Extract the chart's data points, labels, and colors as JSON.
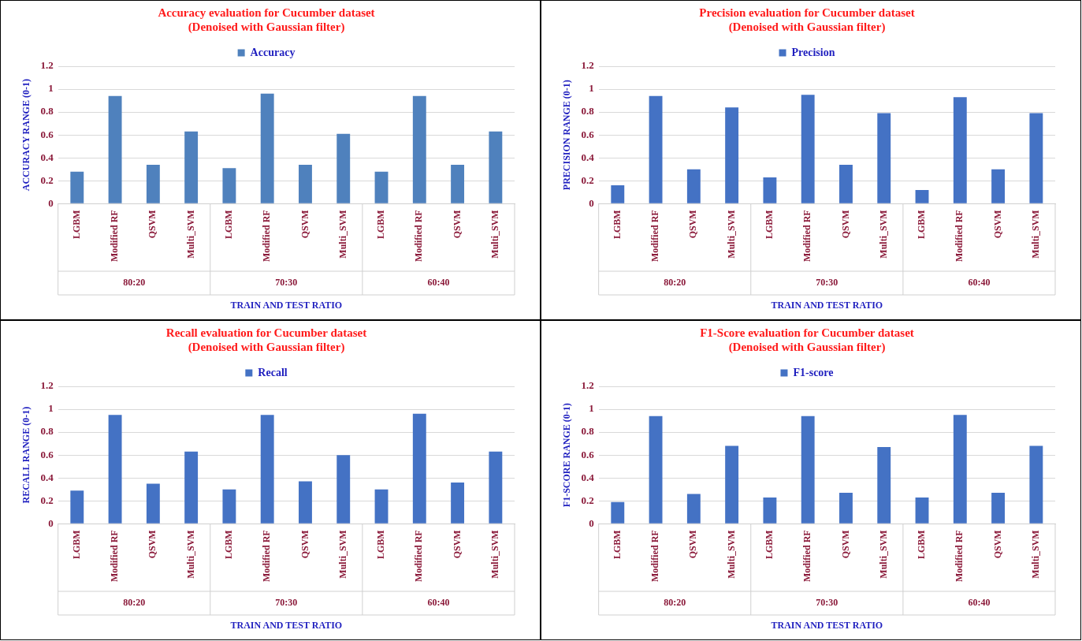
{
  "chart_data": [
    {
      "type": "bar",
      "title": "Accuracy evaluation for Cucumber dataset",
      "subtitle": "(Denoised with Gaussian filter)",
      "xlabel": "TRAIN AND TEST RATIO",
      "ylabel": "ACCURACY RANGE (0-1)",
      "categories": [
        "LGBM",
        "Modified RF",
        "QSVM",
        "Multi_SVM",
        "LGBM",
        "Modified RF",
        "QSVM",
        "Multi_SVM",
        "LGBM",
        "Modified RF",
        "QSVM",
        "Multi_SVM"
      ],
      "series": [
        {
          "name": "Accuracy",
          "color": "#4f81bd",
          "values": [
            0.28,
            0.94,
            0.34,
            0.63,
            0.31,
            0.96,
            0.34,
            0.61,
            0.28,
            0.94,
            0.34,
            0.63
          ]
        }
      ],
      "annotations": [
        "80:20",
        "70:30",
        "60:40"
      ],
      "ylim": [
        0,
        1.2
      ],
      "yticks": [
        0,
        0.2,
        0.4,
        0.6,
        0.8,
        1,
        1.2
      ],
      "grid": "y",
      "legend": "top"
    },
    {
      "type": "bar",
      "title": "Precision evaluation for Cucumber dataset",
      "subtitle": "(Denoised with Gaussian filter)",
      "xlabel": "TRAIN AND TEST RATIO",
      "ylabel": "PRECISION RANGE (0-1)",
      "categories": [
        "LGBM",
        "Modified RF",
        "QSVM",
        "Multi_SVM",
        "LGBM",
        "Modified RF",
        "QSVM",
        "Multi_SVM",
        "LGBM",
        "Modified RF",
        "QSVM",
        "Multi_SVM"
      ],
      "series": [
        {
          "name": "Precision",
          "color": "#4472c4",
          "values": [
            0.16,
            0.94,
            0.3,
            0.84,
            0.23,
            0.95,
            0.34,
            0.79,
            0.12,
            0.93,
            0.3,
            0.79
          ]
        }
      ],
      "annotations": [
        "80:20",
        "70:30",
        "60:40"
      ],
      "ylim": [
        0,
        1.2
      ],
      "yticks": [
        0,
        0.2,
        0.4,
        0.6,
        0.8,
        1,
        1.2
      ],
      "grid": "y",
      "legend": "top"
    },
    {
      "type": "bar",
      "title": "Recall evaluation for Cucumber dataset",
      "subtitle": "(Denoised with Gaussian filter)",
      "xlabel": "TRAIN AND TEST RATIO",
      "ylabel": "RECALL RANGE (0-1)",
      "categories": [
        "LGBM",
        "Modified RF",
        "QSVM",
        "Multi_SVM",
        "LGBM",
        "Modified RF",
        "QSVM",
        "Multi_SVM",
        "LGBM",
        "Modified RF",
        "QSVM",
        "Multi_SVM"
      ],
      "series": [
        {
          "name": "Recall",
          "color": "#4472c4",
          "values": [
            0.29,
            0.95,
            0.35,
            0.63,
            0.3,
            0.95,
            0.37,
            0.6,
            0.3,
            0.96,
            0.36,
            0.63
          ]
        }
      ],
      "annotations": [
        "80:20",
        "70:30",
        "60:40"
      ],
      "ylim": [
        0,
        1.2
      ],
      "yticks": [
        0,
        0.2,
        0.4,
        0.6,
        0.8,
        1,
        1.2
      ],
      "grid": "y",
      "legend": "top"
    },
    {
      "type": "bar",
      "title": "F1-Score evaluation for Cucumber dataset",
      "subtitle": "(Denoised with Gaussian filter)",
      "xlabel": "TRAIN AND TEST RATIO",
      "ylabel": "F1-SCORE RANGE (0-1)",
      "categories": [
        "LGBM",
        "Modified RF",
        "QSVM",
        "Multi_SVM",
        "LGBM",
        "Modified RF",
        "QSVM",
        "Multi_SVM",
        "LGBM",
        "Modified RF",
        "QSVM",
        "Multi_SVM"
      ],
      "series": [
        {
          "name": "F1-score",
          "color": "#4472c4",
          "values": [
            0.19,
            0.94,
            0.26,
            0.68,
            0.23,
            0.94,
            0.27,
            0.67,
            0.23,
            0.95,
            0.27,
            0.68
          ]
        }
      ],
      "annotations": [
        "80:20",
        "70:30",
        "60:40"
      ],
      "ylim": [
        0,
        1.2
      ],
      "yticks": [
        0,
        0.2,
        0.4,
        0.6,
        0.8,
        1,
        1.2
      ],
      "grid": "y",
      "legend": "top"
    }
  ]
}
